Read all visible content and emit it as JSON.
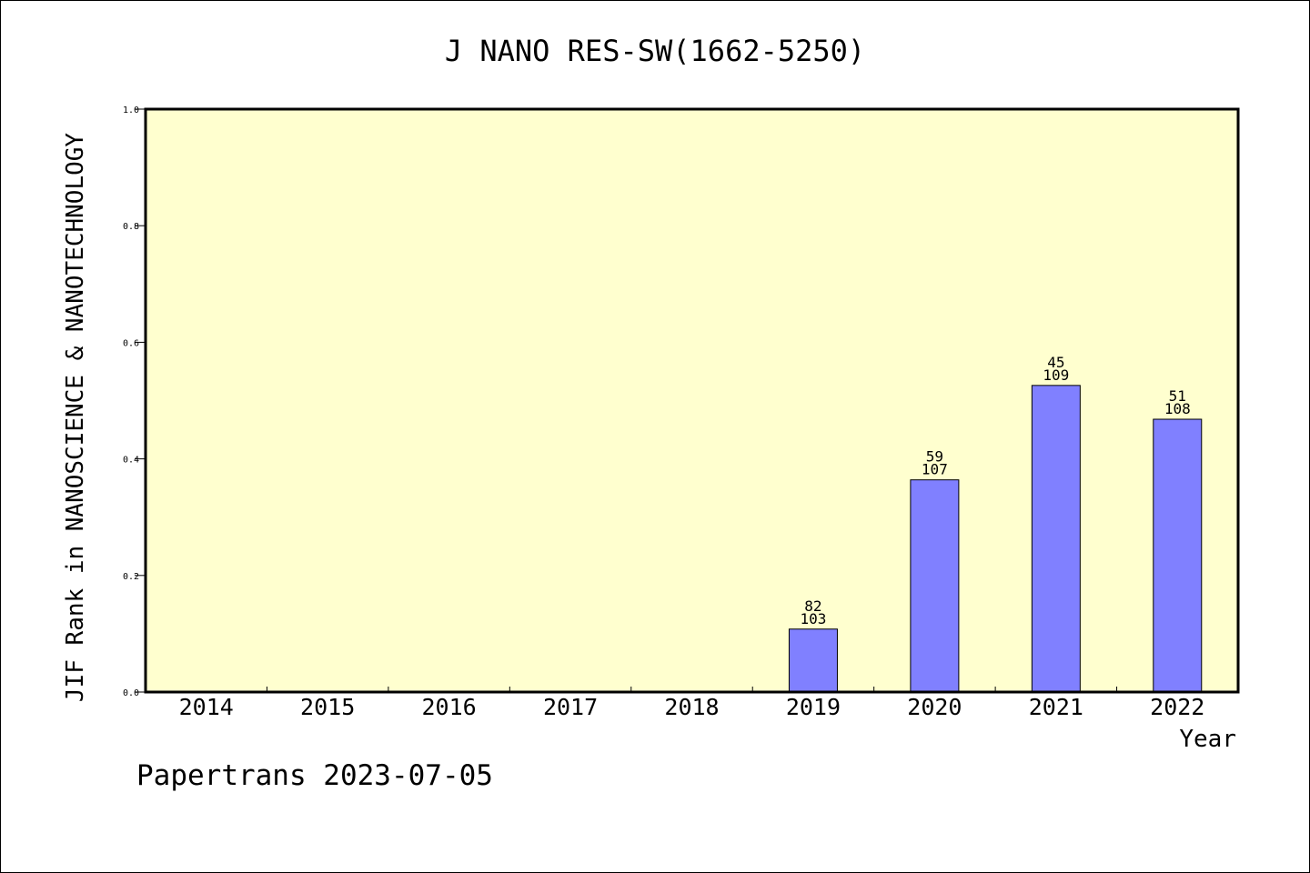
{
  "footer": "Papertrans 2023-07-05",
  "colors": {
    "plot_bg": "#ffffcf",
    "bar": "#8080ff",
    "axis": "#000000"
  },
  "chart_data": {
    "type": "bar",
    "title": "J NANO RES-SW(1662-5250)",
    "xlabel": "Year",
    "ylabel": "JIF Rank in NANOSCIENCE & NANOTECHNOLOGY",
    "ylim": [
      0,
      1
    ],
    "yticks": [
      "0.0",
      "0.2",
      "0.4",
      "0.6",
      "0.8",
      "1.0"
    ],
    "grid": false,
    "categories": [
      "2014",
      "2015",
      "2016",
      "2017",
      "2018",
      "2019",
      "2020",
      "2021",
      "2022"
    ],
    "values": [
      null,
      null,
      null,
      null,
      null,
      0.108,
      0.364,
      0.526,
      0.468
    ],
    "rank": [
      null,
      null,
      null,
      null,
      null,
      "82",
      "59",
      "45",
      "51"
    ],
    "total": [
      null,
      null,
      null,
      null,
      null,
      "103",
      "107",
      "109",
      "108"
    ]
  }
}
